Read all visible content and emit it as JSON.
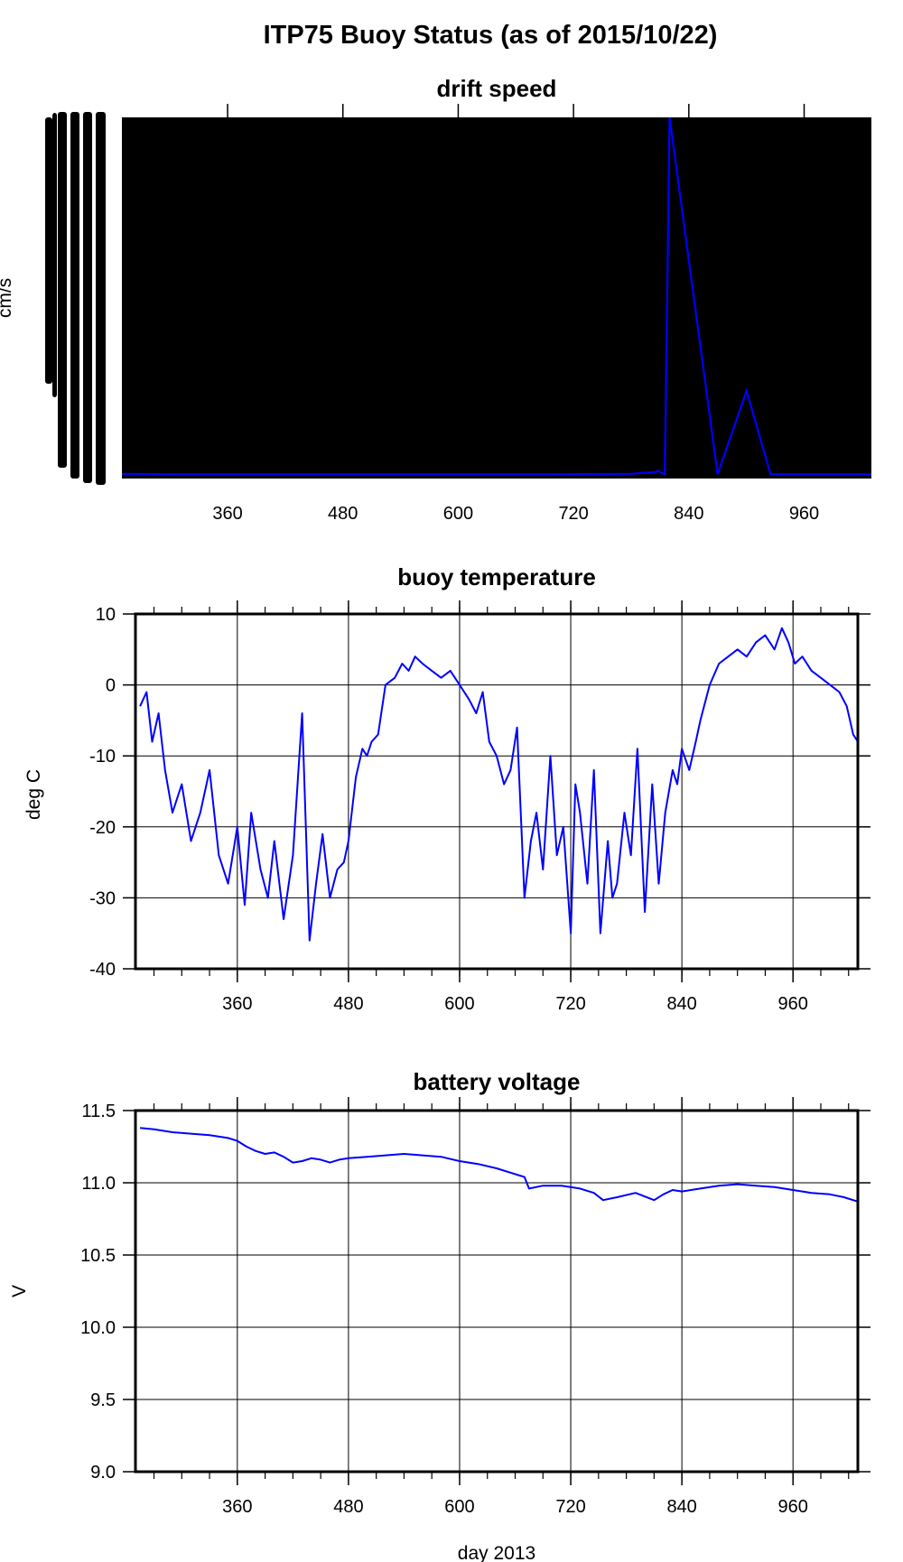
{
  "figure_title": "ITP75 Buoy Status (as of 2015/10/22)",
  "colors": {
    "series": "#0000ff",
    "axes": "#000000",
    "grid": "#000000",
    "background": "#ffffff"
  },
  "chart_data": [
    {
      "type": "line",
      "title": "drift speed",
      "ylabel": "cm/s",
      "xlabel": "",
      "xlim": [
        250,
        1030
      ],
      "x_ticks": [
        360,
        480,
        600,
        720,
        840,
        960
      ],
      "grid": true,
      "note": "plot area and left axis overprinted solid black (unreadable y-axis labels)",
      "series": [
        {
          "x": [
            250,
            300,
            400,
            500,
            600,
            700,
            780,
            805,
            808,
            812,
            815,
            820,
            870,
            900,
            925,
            960,
            1000,
            1030
          ],
          "y": [
            0.3,
            0.2,
            0.2,
            0.2,
            0.2,
            0.2,
            0.3,
            0.8,
            1.2,
            0.5,
            0.3,
            100,
            0.2,
            23.5,
            0.2,
            0.2,
            0.2,
            0.2
          ]
        }
      ]
    },
    {
      "type": "line",
      "title": "buoy temperature",
      "ylabel": "deg C",
      "xlabel": "",
      "xlim": [
        250,
        1030
      ],
      "ylim": [
        -40,
        10
      ],
      "x_ticks": [
        360,
        480,
        600,
        720,
        840,
        960
      ],
      "y_ticks": [
        -40,
        -30,
        -20,
        -10,
        0,
        10
      ],
      "grid": true,
      "series": [
        {
          "x": [
            255,
            262,
            268,
            275,
            282,
            290,
            300,
            310,
            320,
            330,
            340,
            350,
            360,
            368,
            375,
            385,
            393,
            400,
            410,
            420,
            425,
            430,
            438,
            445,
            452,
            460,
            468,
            475,
            480,
            488,
            495,
            500,
            505,
            512,
            520,
            530,
            538,
            545,
            552,
            560,
            570,
            580,
            590,
            600,
            610,
            618,
            625,
            632,
            640,
            648,
            655,
            662,
            670,
            677,
            683,
            690,
            698,
            705,
            712,
            720,
            725,
            730,
            738,
            745,
            752,
            760,
            765,
            770,
            778,
            785,
            792,
            800,
            808,
            815,
            822,
            830,
            835,
            840,
            848,
            855,
            860,
            870,
            880,
            890,
            900,
            910,
            920,
            930,
            940,
            948,
            955,
            962,
            970,
            980,
            990,
            1000,
            1010,
            1018,
            1025,
            1030
          ],
          "y": [
            -3,
            -1,
            -8,
            -4,
            -12,
            -18,
            -14,
            -22,
            -18,
            -12,
            -24,
            -28,
            -20,
            -31,
            -18,
            -26,
            -30,
            -22,
            -33,
            -24,
            -14,
            -4,
            -36,
            -28,
            -21,
            -30,
            -26,
            -25,
            -22,
            -13,
            -9,
            -10,
            -8,
            -7,
            0,
            1,
            3,
            2,
            4,
            3,
            2,
            1,
            2,
            0,
            -2,
            -4,
            -1,
            -8,
            -10,
            -14,
            -12,
            -6,
            -30,
            -22,
            -18,
            -26,
            -10,
            -24,
            -20,
            -35,
            -14,
            -18,
            -28,
            -12,
            -35,
            -22,
            -30,
            -28,
            -18,
            -24,
            -9,
            -32,
            -14,
            -28,
            -18,
            -12,
            -14,
            -9,
            -12,
            -8,
            -5,
            0,
            3,
            4,
            5,
            4,
            6,
            7,
            5,
            8,
            6,
            3,
            4,
            2,
            1,
            0,
            -1,
            -3,
            -7,
            -8
          ]
        }
      ]
    },
    {
      "type": "line",
      "title": "battery voltage",
      "ylabel": "V",
      "xlabel": "day 2013",
      "xlim": [
        250,
        1030
      ],
      "ylim": [
        9.0,
        11.5
      ],
      "x_ticks": [
        360,
        480,
        600,
        720,
        840,
        960
      ],
      "y_ticks": [
        "9.0",
        "9.5",
        "10.0",
        "10.5",
        "11.0",
        "11.5"
      ],
      "grid": true,
      "series": [
        {
          "x": [
            255,
            270,
            290,
            310,
            330,
            350,
            360,
            370,
            380,
            390,
            400,
            410,
            420,
            430,
            440,
            450,
            460,
            470,
            480,
            500,
            520,
            540,
            560,
            580,
            600,
            620,
            640,
            655,
            665,
            670,
            675,
            690,
            710,
            730,
            745,
            755,
            770,
            790,
            810,
            820,
            830,
            840,
            860,
            880,
            900,
            920,
            940,
            960,
            980,
            1000,
            1015,
            1030
          ],
          "y": [
            11.38,
            11.37,
            11.35,
            11.34,
            11.33,
            11.31,
            11.29,
            11.25,
            11.22,
            11.2,
            11.21,
            11.18,
            11.14,
            11.15,
            11.17,
            11.16,
            11.14,
            11.16,
            11.17,
            11.18,
            11.19,
            11.2,
            11.19,
            11.18,
            11.15,
            11.13,
            11.1,
            11.07,
            11.05,
            11.04,
            10.96,
            10.98,
            10.98,
            10.96,
            10.93,
            10.88,
            10.9,
            10.93,
            10.88,
            10.92,
            10.95,
            10.94,
            10.96,
            10.98,
            10.99,
            10.98,
            10.97,
            10.95,
            10.93,
            10.92,
            10.9,
            10.87
          ]
        }
      ]
    }
  ]
}
